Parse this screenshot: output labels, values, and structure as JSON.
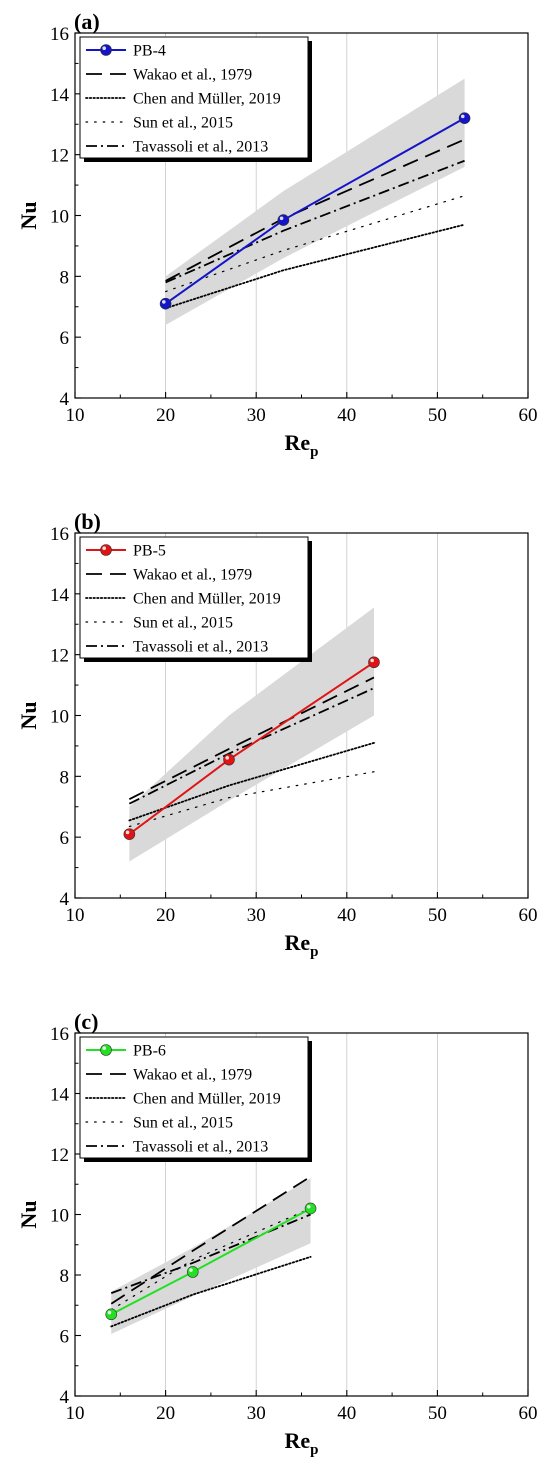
{
  "chart_data": [
    {
      "type": "line",
      "panel_label": "(a)",
      "xlabel": "Re",
      "xlabel_sub": "p",
      "ylabel": "Nu",
      "xlim": [
        10,
        60
      ],
      "ylim": [
        4,
        16
      ],
      "xticks": [
        10,
        20,
        30,
        40,
        50,
        60
      ],
      "yticks": [
        4,
        6,
        8,
        10,
        12,
        14,
        16
      ],
      "grid": "vertical",
      "legend_position": "top-left",
      "band": {
        "x": [
          20,
          33,
          53
        ],
        "lower": [
          6.4,
          8.6,
          11.6
        ],
        "upper": [
          8.0,
          10.8,
          14.5
        ]
      },
      "series": [
        {
          "name": "PB-4",
          "style": "marker-line",
          "color": "#1414c8",
          "x": [
            20,
            33,
            53
          ],
          "y": [
            7.1,
            9.85,
            13.2
          ]
        },
        {
          "name": "Wakao et al., 1979",
          "style": "dash",
          "color": "#000000",
          "x": [
            20,
            33,
            53
          ],
          "y": [
            7.85,
            9.9,
            12.5
          ]
        },
        {
          "name": "Chen and Müller, 2019",
          "style": "dot",
          "color": "#000000",
          "x": [
            20,
            33,
            53
          ],
          "y": [
            6.95,
            8.2,
            9.7
          ]
        },
        {
          "name": "Sun et al., 2015",
          "style": "sparse-dot",
          "color": "#000000",
          "x": [
            20,
            33,
            53
          ],
          "y": [
            7.5,
            8.85,
            10.65
          ]
        },
        {
          "name": "Tavassoli et al., 2013",
          "style": "dashdot",
          "color": "#000000",
          "x": [
            20,
            33,
            53
          ],
          "y": [
            7.8,
            9.5,
            11.8
          ]
        }
      ]
    },
    {
      "type": "line",
      "panel_label": "(b)",
      "xlabel": "Re",
      "xlabel_sub": "p",
      "ylabel": "Nu",
      "xlim": [
        10,
        60
      ],
      "ylim": [
        4,
        16
      ],
      "xticks": [
        10,
        20,
        30,
        40,
        50,
        60
      ],
      "yticks": [
        4,
        6,
        8,
        10,
        12,
        14,
        16
      ],
      "grid": "vertical",
      "legend_position": "top-left",
      "band": {
        "x": [
          16,
          27,
          43
        ],
        "lower": [
          5.2,
          7.2,
          10.0
        ],
        "upper": [
          7.0,
          10.0,
          13.55
        ]
      },
      "series": [
        {
          "name": "PB-5",
          "style": "marker-line",
          "color": "#e01414",
          "x": [
            16,
            27,
            43
          ],
          "y": [
            6.1,
            8.55,
            11.75
          ]
        },
        {
          "name": "Wakao et al., 1979",
          "style": "dash",
          "color": "#000000",
          "x": [
            16,
            27,
            43
          ],
          "y": [
            7.25,
            8.9,
            11.25
          ]
        },
        {
          "name": "Chen and Müller, 2019",
          "style": "dot",
          "color": "#000000",
          "x": [
            16,
            27,
            43
          ],
          "y": [
            6.55,
            7.7,
            9.1
          ]
        },
        {
          "name": "Sun et al., 2015",
          "style": "sparse-dot",
          "color": "#000000",
          "x": [
            16,
            27,
            43
          ],
          "y": [
            6.35,
            7.3,
            8.15
          ]
        },
        {
          "name": "Tavassoli et al., 2013",
          "style": "dashdot",
          "color": "#000000",
          "x": [
            16,
            27,
            43
          ],
          "y": [
            7.1,
            8.75,
            10.9
          ]
        }
      ]
    },
    {
      "type": "line",
      "panel_label": "(c)",
      "xlabel": "Re",
      "xlabel_sub": "p",
      "ylabel": "Nu",
      "xlim": [
        10,
        60
      ],
      "ylim": [
        4,
        16
      ],
      "xticks": [
        10,
        20,
        30,
        40,
        50,
        60
      ],
      "yticks": [
        4,
        6,
        8,
        10,
        12,
        14,
        16
      ],
      "grid": "vertical",
      "legend_position": "top-left",
      "band": {
        "x": [
          14,
          23,
          36
        ],
        "lower": [
          6.05,
          7.3,
          9.05
        ],
        "upper": [
          7.45,
          8.9,
          11.2
        ]
      },
      "series": [
        {
          "name": "PB-6",
          "style": "marker-line",
          "color": "#22e022",
          "x": [
            14,
            23,
            36
          ],
          "y": [
            6.7,
            8.1,
            10.2
          ]
        },
        {
          "name": "Wakao et al., 1979",
          "style": "dash",
          "color": "#000000",
          "x": [
            14,
            23,
            36
          ],
          "y": [
            7.05,
            8.8,
            11.25
          ]
        },
        {
          "name": "Chen and Müller, 2019",
          "style": "dot",
          "color": "#000000",
          "x": [
            14,
            23,
            36
          ],
          "y": [
            6.3,
            7.35,
            8.6
          ]
        },
        {
          "name": "Sun et al., 2015",
          "style": "sparse-dot",
          "color": "#000000",
          "x": [
            14,
            23,
            36
          ],
          "y": [
            6.85,
            8.5,
            10.2
          ]
        },
        {
          "name": "Tavassoli et al., 2013",
          "style": "dashdot",
          "color": "#000000",
          "x": [
            14,
            23,
            36
          ],
          "y": [
            7.4,
            8.4,
            10.0
          ]
        }
      ]
    }
  ]
}
